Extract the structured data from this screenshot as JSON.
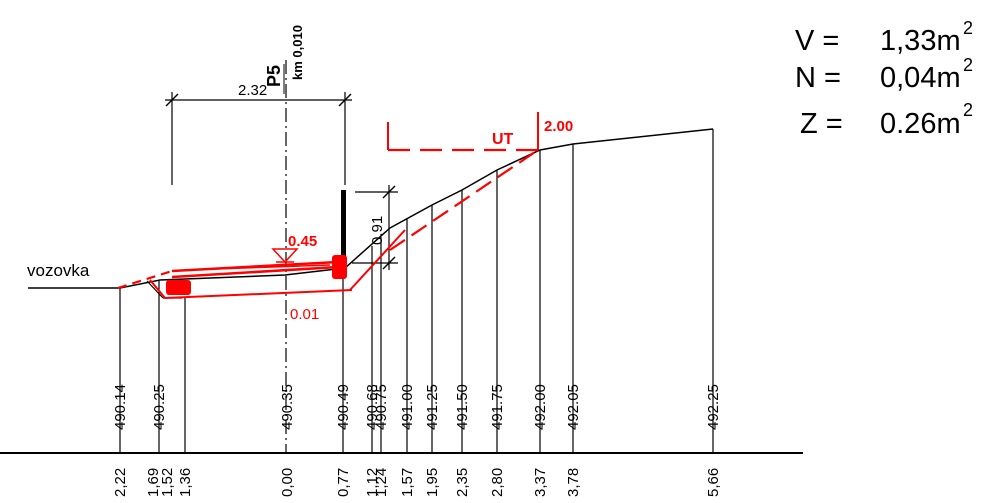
{
  "summary": {
    "v_label": "V =",
    "v_value": "1,33m",
    "n_label": "N =",
    "n_value": "0,04m",
    "z_label": "Z =",
    "z_value": "0.26m",
    "superscript": "2"
  },
  "labels": {
    "road": "vozovka",
    "profile": "P5",
    "km": "km 0,010",
    "width_dim": "2.32",
    "height_dim": "0.91",
    "depth_left": "0.45",
    "offset_bottom": "0.01",
    "ut": "UT",
    "ut_value": "2.00"
  },
  "elevations": [
    "490.14",
    "490.25",
    "490.35",
    "490.49",
    "490.68",
    "490.75",
    "491.00",
    "491.25",
    "491.50",
    "491.75",
    "492.00",
    "492.05",
    "492.25"
  ],
  "distances": [
    "2,22",
    "1,69",
    "1,52",
    "1,36",
    "0,00",
    "0,77",
    "1,12",
    "1,24",
    "1,57",
    "1,95",
    "2,35",
    "2,80",
    "3,37",
    "3,78",
    "5,66"
  ],
  "colors": {
    "design": "#ff0000",
    "terrain": "#000000"
  }
}
